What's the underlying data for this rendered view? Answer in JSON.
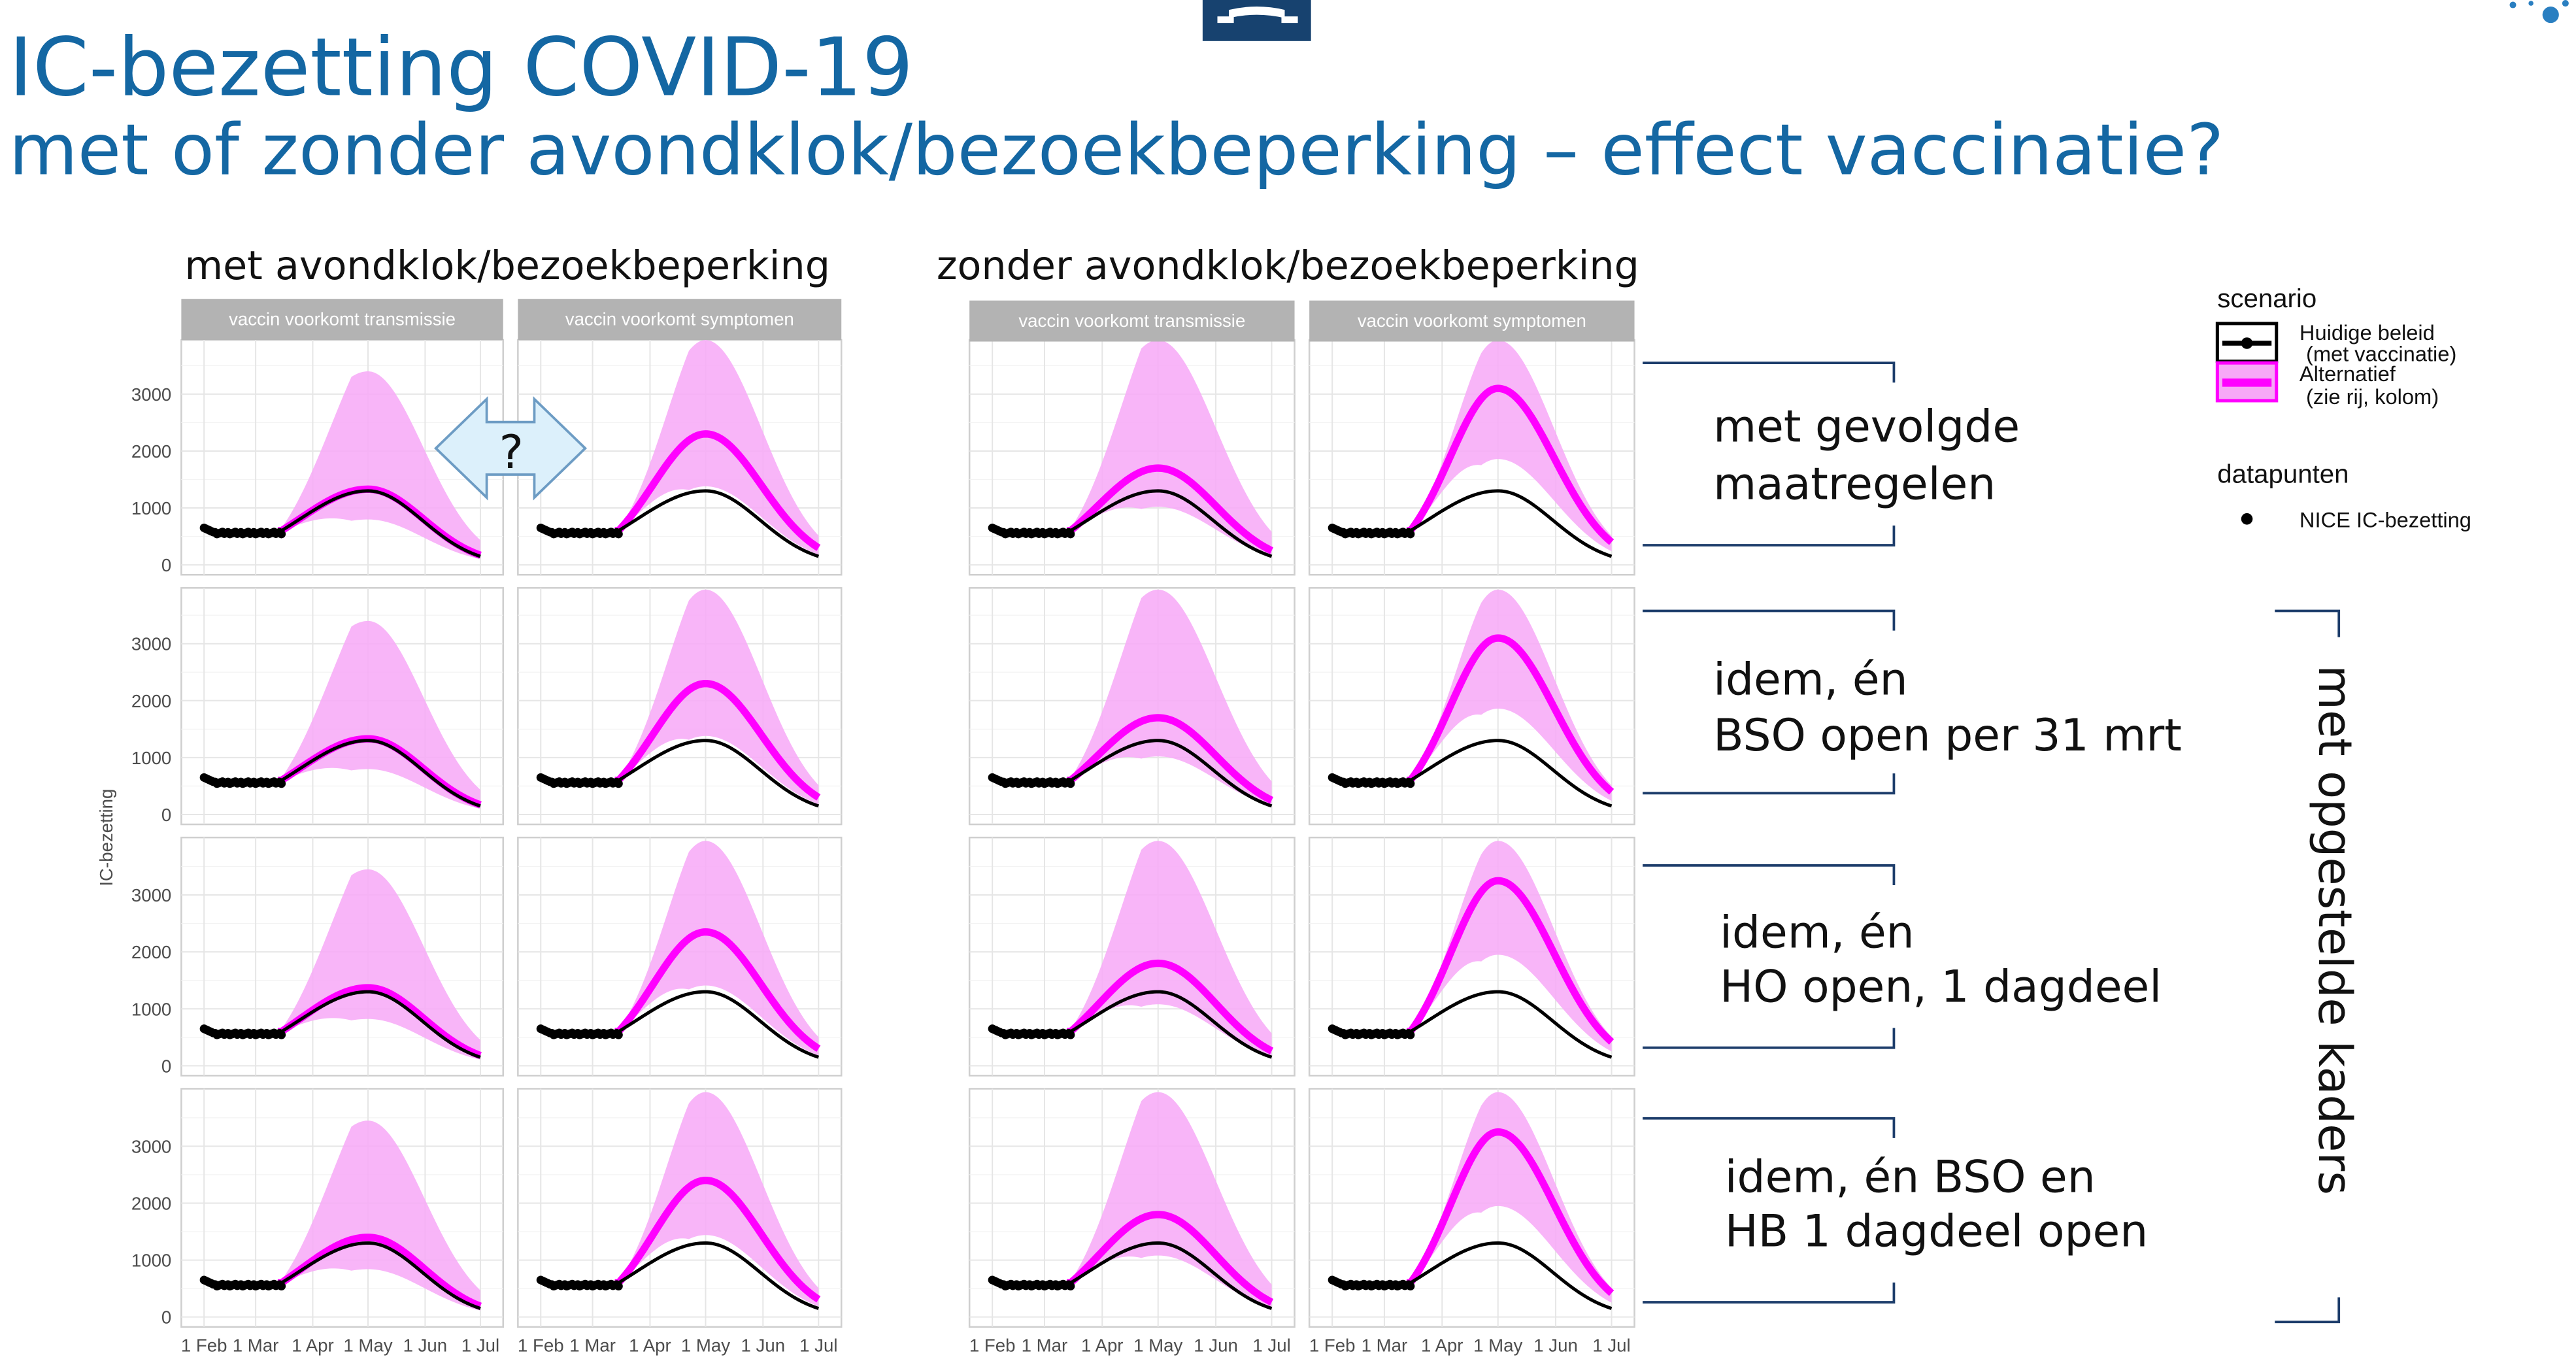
{
  "slide": {
    "title": "IC-bezetting COVID-19",
    "subtitle": "met of zonder avondklok/bezoekbeperking – effect vaccinatie?",
    "title_color": "#1467a3",
    "logo_color": "#17426f",
    "question_arrow_label": "?",
    "side_label": "met opgestelde kaders",
    "row_labels": [
      [
        "met gevolgde",
        "maatregelen"
      ],
      [
        "idem, én",
        "BSO open per 31 mrt"
      ],
      [
        "idem, én",
        "HO open, 1 dagdeel"
      ],
      [
        "idem, én BSO en",
        "HB 1 dagdeel open"
      ]
    ]
  },
  "legend": {
    "scenario_title": "scenario",
    "items": [
      {
        "label1": "Huidige beleid",
        "label2": "(met vaccinatie)",
        "color": "#000000"
      },
      {
        "label1": "Alternatief",
        "label2": "(zie rij, kolom)",
        "color": "#ff00ff"
      }
    ],
    "points_title": "datapunten",
    "points_label": "NICE IC-bezetting"
  },
  "chart_data": {
    "type": "line",
    "ylabel": "IC-bezetting",
    "group_titles": [
      "met avondklok/bezoekbeperking",
      "zonder avondklok/bezoekbeperking"
    ],
    "strip_labels": [
      "vaccin voorkomt transmissie",
      "vaccin voorkomt symptomen"
    ],
    "x_tick_labels": [
      "1 Feb",
      "1 Mar",
      "1 Apr",
      "1 May",
      "1 Jun",
      "1 Jul"
    ],
    "x_range": [
      "2021-02-01",
      "2021-07-01"
    ],
    "y_ticks": [
      0,
      1000,
      2000,
      3000
    ],
    "ylim": [
      0,
      3900
    ],
    "grid": true,
    "legend_position": "right",
    "colors": {
      "current": "#000000",
      "alternative": "#ff00ff",
      "band": "#f7a8f7"
    },
    "observed": {
      "series": "NICE IC-bezetting",
      "from": "2021-02-01",
      "to": "2021-03-14",
      "start_value": 650,
      "level": 560
    },
    "current_policy": {
      "peak": 1300,
      "peak_date": "2021-05-01",
      "end_value": 150
    },
    "panels": [
      {
        "row": 1,
        "group": 1,
        "strip": 1,
        "alt_peak": 1330,
        "alt_end": 170,
        "band_peak": 3400
      },
      {
        "row": 1,
        "group": 1,
        "strip": 2,
        "alt_peak": 2300,
        "alt_end": 300,
        "band_peak": 3950
      },
      {
        "row": 1,
        "group": 2,
        "strip": 1,
        "alt_peak": 1700,
        "alt_end": 250,
        "band_peak": 3950
      },
      {
        "row": 1,
        "group": 2,
        "strip": 2,
        "alt_peak": 3100,
        "alt_end": 400,
        "band_peak": 3950
      },
      {
        "row": 2,
        "group": 1,
        "strip": 1,
        "alt_peak": 1330,
        "alt_end": 170,
        "band_peak": 3400
      },
      {
        "row": 2,
        "group": 1,
        "strip": 2,
        "alt_peak": 2300,
        "alt_end": 300,
        "band_peak": 3950
      },
      {
        "row": 2,
        "group": 2,
        "strip": 1,
        "alt_peak": 1700,
        "alt_end": 250,
        "band_peak": 3950
      },
      {
        "row": 2,
        "group": 2,
        "strip": 2,
        "alt_peak": 3100,
        "alt_end": 400,
        "band_peak": 3950
      },
      {
        "row": 3,
        "group": 1,
        "strip": 1,
        "alt_peak": 1370,
        "alt_end": 180,
        "band_peak": 3450
      },
      {
        "row": 3,
        "group": 1,
        "strip": 2,
        "alt_peak": 2350,
        "alt_end": 300,
        "band_peak": 3950
      },
      {
        "row": 3,
        "group": 2,
        "strip": 1,
        "alt_peak": 1800,
        "alt_end": 260,
        "band_peak": 3950
      },
      {
        "row": 3,
        "group": 2,
        "strip": 2,
        "alt_peak": 3250,
        "alt_end": 420,
        "band_peak": 3950
      },
      {
        "row": 4,
        "group": 1,
        "strip": 1,
        "alt_peak": 1400,
        "alt_end": 190,
        "band_peak": 3450
      },
      {
        "row": 4,
        "group": 1,
        "strip": 2,
        "alt_peak": 2400,
        "alt_end": 310,
        "band_peak": 3950
      },
      {
        "row": 4,
        "group": 2,
        "strip": 1,
        "alt_peak": 1800,
        "alt_end": 260,
        "band_peak": 3950
      },
      {
        "row": 4,
        "group": 2,
        "strip": 2,
        "alt_peak": 3250,
        "alt_end": 420,
        "band_peak": 3950
      }
    ]
  }
}
